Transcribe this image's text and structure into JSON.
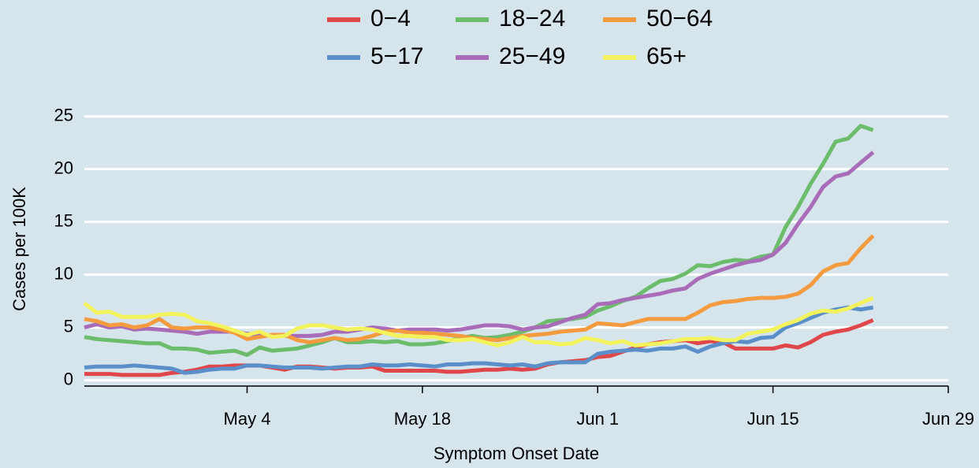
{
  "chart_data": {
    "type": "line",
    "x_label": "Symptom Onset Date",
    "y_label": "Cases per 100K",
    "x": [
      "Apr 21",
      "Apr 22",
      "Apr 23",
      "Apr 24",
      "Apr 25",
      "Apr 26",
      "Apr 27",
      "Apr 28",
      "Apr 29",
      "Apr 30",
      "May  1",
      "May  2",
      "May  3",
      "May  4",
      "May  5",
      "May  6",
      "May  7",
      "May  8",
      "May  9",
      "May 10",
      "May 11",
      "May 12",
      "May 13",
      "May 14",
      "May 15",
      "May 16",
      "May 17",
      "May 18",
      "May 19",
      "May 20",
      "May 21",
      "May 22",
      "May 23",
      "May 24",
      "May 25",
      "May 26",
      "May 27",
      "May 28",
      "May 29",
      "May 30",
      "May 31",
      "Jun  1",
      "Jun  2",
      "Jun  3",
      "Jun  4",
      "Jun  5",
      "Jun  6",
      "Jun  7",
      "Jun  8",
      "Jun  9",
      "Jun 10",
      "Jun 11",
      "Jun 12",
      "Jun 13",
      "Jun 14",
      "Jun 15",
      "Jun 16",
      "Jun 17",
      "Jun 18",
      "Jun 19",
      "Jun 20",
      "Jun 21",
      "Jun 22",
      "Jun 23"
    ],
    "xlim": [
      "Apr 21",
      "Jun 29"
    ],
    "xticks": [
      "May  4",
      "May 18",
      "Jun  1",
      "Jun 15",
      "Jun 29"
    ],
    "ylim": [
      -1,
      25.5
    ],
    "yticks": [
      0,
      5,
      10,
      15,
      20,
      25
    ],
    "grid": true,
    "legend": "top",
    "series": [
      {
        "name": "0−4",
        "color": "#e0474b",
        "values": [
          0.6,
          0.6,
          0.6,
          0.5,
          0.5,
          0.5,
          0.5,
          0.7,
          0.8,
          1.0,
          1.3,
          1.3,
          1.4,
          1.4,
          1.4,
          1.2,
          1.0,
          1.3,
          1.3,
          1.2,
          1.1,
          1.2,
          1.2,
          1.3,
          0.9,
          0.9,
          0.9,
          0.9,
          0.9,
          0.8,
          0.8,
          0.9,
          1.0,
          1.0,
          1.1,
          1.0,
          1.1,
          1.5,
          1.7,
          1.8,
          1.9,
          2.2,
          2.3,
          2.7,
          3.1,
          3.4,
          3.6,
          3.7,
          3.8,
          3.5,
          3.7,
          3.6,
          3.0,
          3.0,
          3.0,
          3.0,
          3.3,
          3.1,
          3.6,
          4.3,
          4.6,
          4.8,
          5.2,
          5.7
        ]
      },
      {
        "name": "5−17",
        "color": "#5b8fc9",
        "values": [
          1.2,
          1.3,
          1.3,
          1.3,
          1.4,
          1.3,
          1.2,
          1.1,
          0.7,
          0.8,
          1.0,
          1.1,
          1.1,
          1.4,
          1.4,
          1.3,
          1.2,
          1.2,
          1.2,
          1.1,
          1.2,
          1.3,
          1.3,
          1.5,
          1.4,
          1.4,
          1.5,
          1.4,
          1.3,
          1.5,
          1.5,
          1.6,
          1.6,
          1.5,
          1.4,
          1.5,
          1.3,
          1.6,
          1.7,
          1.7,
          1.7,
          2.5,
          2.7,
          2.8,
          2.9,
          2.8,
          3.0,
          3.0,
          3.2,
          2.7,
          3.2,
          3.5,
          3.7,
          3.6,
          4.0,
          4.1,
          5.0,
          5.4,
          5.9,
          6.4,
          6.7,
          6.9,
          6.7,
          6.9
        ]
      },
      {
        "name": "18−24",
        "color": "#6bbd6b",
        "values": [
          4.1,
          3.9,
          3.8,
          3.7,
          3.6,
          3.5,
          3.5,
          3.0,
          3.0,
          2.9,
          2.6,
          2.7,
          2.8,
          2.4,
          3.1,
          2.8,
          2.9,
          3.0,
          3.3,
          3.6,
          4.0,
          3.6,
          3.6,
          3.7,
          3.6,
          3.7,
          3.4,
          3.4,
          3.5,
          3.7,
          4.0,
          4.2,
          4.0,
          4.1,
          4.3,
          4.6,
          5.0,
          5.6,
          5.7,
          5.8,
          6.0,
          6.6,
          7.0,
          7.5,
          7.9,
          8.7,
          9.4,
          9.6,
          10.1,
          10.9,
          10.8,
          11.2,
          11.4,
          11.3,
          11.7,
          11.9,
          14.5,
          16.4,
          18.6,
          20.5,
          22.6,
          22.9,
          24.1,
          23.7
        ]
      },
      {
        "name": "25−49",
        "color": "#a86cb8",
        "values": [
          5.0,
          5.3,
          5.0,
          5.1,
          4.8,
          4.9,
          4.8,
          4.7,
          4.6,
          4.4,
          4.6,
          4.6,
          4.6,
          4.4,
          4.3,
          4.2,
          4.2,
          4.2,
          4.2,
          4.3,
          4.6,
          4.6,
          4.8,
          5.0,
          4.9,
          4.7,
          4.8,
          4.8,
          4.8,
          4.7,
          4.8,
          5.0,
          5.2,
          5.2,
          5.1,
          4.8,
          5.0,
          5.1,
          5.5,
          5.9,
          6.2,
          7.2,
          7.3,
          7.6,
          7.8,
          8.0,
          8.2,
          8.5,
          8.7,
          9.6,
          10.1,
          10.5,
          10.9,
          11.2,
          11.4,
          11.9,
          13.0,
          14.8,
          16.4,
          18.3,
          19.3,
          19.6,
          20.6,
          21.6
        ]
      },
      {
        "name": "50−64",
        "color": "#f59b3f",
        "values": [
          5.8,
          5.6,
          5.2,
          5.3,
          5.0,
          5.2,
          5.8,
          5.0,
          4.9,
          5.0,
          5.0,
          4.8,
          4.5,
          3.9,
          4.1,
          4.3,
          4.3,
          3.8,
          3.6,
          3.8,
          4.0,
          3.8,
          3.9,
          4.2,
          4.6,
          4.7,
          4.5,
          4.5,
          4.4,
          4.3,
          4.2,
          4.0,
          3.9,
          3.8,
          4.0,
          4.2,
          4.3,
          4.4,
          4.6,
          4.7,
          4.8,
          5.4,
          5.3,
          5.2,
          5.5,
          5.8,
          5.8,
          5.8,
          5.8,
          6.4,
          7.1,
          7.4,
          7.5,
          7.7,
          7.8,
          7.8,
          7.9,
          8.2,
          9.0,
          10.3,
          10.9,
          11.1,
          12.5,
          13.7
        ]
      },
      {
        "name": "65+",
        "color": "#f2f25c",
        "values": [
          7.3,
          6.4,
          6.5,
          6.0,
          6.0,
          6.0,
          6.2,
          6.3,
          6.2,
          5.6,
          5.4,
          5.1,
          4.7,
          4.3,
          4.6,
          4.1,
          4.2,
          4.9,
          5.2,
          5.2,
          5.0,
          4.8,
          4.9,
          4.8,
          4.5,
          4.2,
          4.2,
          4.1,
          4.1,
          3.8,
          3.8,
          3.9,
          3.6,
          3.3,
          3.6,
          4.1,
          3.6,
          3.6,
          3.4,
          3.5,
          4.0,
          3.8,
          3.5,
          3.7,
          3.3,
          3.4,
          3.5,
          3.7,
          3.9,
          3.9,
          4.0,
          3.8,
          3.8,
          4.4,
          4.6,
          4.8,
          5.3,
          5.7,
          6.3,
          6.6,
          6.5,
          6.8,
          7.3,
          7.8
        ]
      }
    ]
  }
}
